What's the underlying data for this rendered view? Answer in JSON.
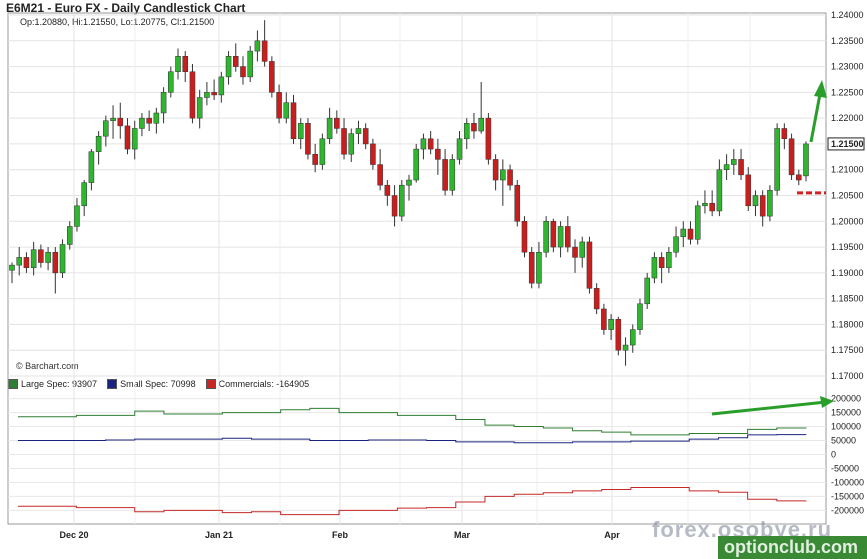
{
  "header": {
    "title": "E6M21 - Euro FX - Daily Candlestick Chart",
    "ohlc": "Op:1.20880, Hi:1.21550, Lo:1.20775, Cl:1.21500",
    "credit": "© Barchart.com"
  },
  "watermark": {
    "line1": "forex.osobye.ru",
    "line2": "optionclub.com"
  },
  "chart_data": [
    {
      "type": "candlestick",
      "title": "E6M21 - Euro FX - Daily Candlestick Chart",
      "ylim": [
        1.17,
        1.24
      ],
      "yticks": [
        "1.24000",
        "1.23500",
        "1.23000",
        "1.22500",
        "1.22000",
        "1.21500",
        "1.21000",
        "1.20500",
        "1.20000",
        "1.19500",
        "1.19000",
        "1.18500",
        "1.18000",
        "1.17500",
        "1.17000"
      ],
      "last_price": "1.21500",
      "x_labels": [
        "Dec 20",
        "Jan 21",
        "Feb",
        "Mar",
        "Apr"
      ],
      "colors": {
        "up": "#2fb52f",
        "down": "#c81e1e",
        "arrow": "#2a9e2a",
        "level": "#d42020"
      },
      "candles": [
        [
          1.1905,
          1.192,
          1.188,
          1.1915
        ],
        [
          1.1915,
          1.195,
          1.1895,
          1.193
        ],
        [
          1.193,
          1.194,
          1.19,
          1.191
        ],
        [
          1.191,
          1.196,
          1.1895,
          1.1945
        ],
        [
          1.1945,
          1.1955,
          1.191,
          1.192
        ],
        [
          1.192,
          1.195,
          1.1905,
          1.194
        ],
        [
          1.194,
          1.195,
          1.186,
          1.19
        ],
        [
          1.19,
          1.1965,
          1.189,
          1.1955
        ],
        [
          1.1955,
          1.2,
          1.1945,
          1.199
        ],
        [
          1.199,
          1.2045,
          1.198,
          1.203
        ],
        [
          1.203,
          1.208,
          1.201,
          1.2075
        ],
        [
          1.2075,
          1.214,
          1.206,
          1.2135
        ],
        [
          1.2135,
          1.2175,
          1.211,
          1.2165
        ],
        [
          1.2165,
          1.2205,
          1.2145,
          1.2195
        ],
        [
          1.2195,
          1.2225,
          1.216,
          1.22
        ],
        [
          1.22,
          1.223,
          1.216,
          1.2185
        ],
        [
          1.2185,
          1.22,
          1.213,
          1.214
        ],
        [
          1.214,
          1.2195,
          1.212,
          1.218
        ],
        [
          1.218,
          1.221,
          1.2165,
          1.22
        ],
        [
          1.22,
          1.2215,
          1.2175,
          1.219
        ],
        [
          1.219,
          1.222,
          1.217,
          1.221
        ],
        [
          1.221,
          1.226,
          1.219,
          1.225
        ],
        [
          1.225,
          1.23,
          1.224,
          1.229
        ],
        [
          1.229,
          1.2335,
          1.2275,
          1.232
        ],
        [
          1.232,
          1.233,
          1.227,
          1.229
        ],
        [
          1.229,
          1.2305,
          1.219,
          1.22
        ],
        [
          1.22,
          1.2255,
          1.218,
          1.224
        ],
        [
          1.224,
          1.227,
          1.2225,
          1.225
        ],
        [
          1.225,
          1.2275,
          1.2235,
          1.2245
        ],
        [
          1.2245,
          1.229,
          1.223,
          1.228
        ],
        [
          1.228,
          1.233,
          1.2265,
          1.232
        ],
        [
          1.232,
          1.2345,
          1.229,
          1.23
        ],
        [
          1.23,
          1.232,
          1.2265,
          1.228
        ],
        [
          1.228,
          1.234,
          1.227,
          1.233
        ],
        [
          1.233,
          1.237,
          1.231,
          1.235
        ],
        [
          1.235,
          1.239,
          1.23,
          1.231
        ],
        [
          1.231,
          1.232,
          1.224,
          1.225
        ],
        [
          1.225,
          1.2265,
          1.219,
          1.22
        ],
        [
          1.22,
          1.225,
          1.219,
          1.223
        ],
        [
          1.223,
          1.2245,
          1.215,
          1.216
        ],
        [
          1.216,
          1.22,
          1.214,
          1.219
        ],
        [
          1.219,
          1.22,
          1.212,
          1.213
        ],
        [
          1.213,
          1.215,
          1.2095,
          1.211
        ],
        [
          1.211,
          1.217,
          1.21,
          1.216
        ],
        [
          1.216,
          1.222,
          1.215,
          1.22
        ],
        [
          1.22,
          1.2215,
          1.217,
          1.218
        ],
        [
          1.218,
          1.22,
          1.212,
          1.213
        ],
        [
          1.213,
          1.218,
          1.2115,
          1.217
        ],
        [
          1.217,
          1.2195,
          1.215,
          1.218
        ],
        [
          1.218,
          1.219,
          1.214,
          1.215
        ],
        [
          1.215,
          1.216,
          1.21,
          1.211
        ],
        [
          1.211,
          1.214,
          1.206,
          1.207
        ],
        [
          1.207,
          1.208,
          1.203,
          1.205
        ],
        [
          1.205,
          1.207,
          1.199,
          1.201
        ],
        [
          1.201,
          1.208,
          1.2,
          1.207
        ],
        [
          1.207,
          1.209,
          1.204,
          1.208
        ],
        [
          1.208,
          1.215,
          1.2075,
          1.214
        ],
        [
          1.214,
          1.217,
          1.212,
          1.216
        ],
        [
          1.216,
          1.2175,
          1.213,
          1.214
        ],
        [
          1.214,
          1.216,
          1.209,
          1.212
        ],
        [
          1.212,
          1.214,
          1.205,
          1.206
        ],
        [
          1.206,
          1.213,
          1.205,
          1.212
        ],
        [
          1.212,
          1.2175,
          1.211,
          1.216
        ],
        [
          1.216,
          1.22,
          1.214,
          1.219
        ],
        [
          1.219,
          1.221,
          1.216,
          1.2175
        ],
        [
          1.2175,
          1.227,
          1.217,
          1.22
        ],
        [
          1.22,
          1.221,
          1.211,
          1.212
        ],
        [
          1.212,
          1.213,
          1.206,
          1.208
        ],
        [
          1.208,
          1.212,
          1.203,
          1.21
        ],
        [
          1.21,
          1.211,
          1.206,
          1.207
        ],
        [
          1.207,
          1.208,
          1.199,
          1.2
        ],
        [
          1.2,
          1.201,
          1.193,
          1.194
        ],
        [
          1.194,
          1.195,
          1.187,
          1.188
        ],
        [
          1.188,
          1.196,
          1.187,
          1.194
        ],
        [
          1.194,
          1.201,
          1.193,
          1.2
        ],
        [
          1.2,
          1.2005,
          1.194,
          1.195
        ],
        [
          1.195,
          1.2,
          1.193,
          1.199
        ],
        [
          1.199,
          1.201,
          1.194,
          1.195
        ],
        [
          1.195,
          1.1965,
          1.19,
          1.193
        ],
        [
          1.193,
          1.197,
          1.191,
          1.196
        ],
        [
          1.196,
          1.197,
          1.186,
          1.187
        ],
        [
          1.187,
          1.188,
          1.182,
          1.183
        ],
        [
          1.183,
          1.184,
          1.178,
          1.179
        ],
        [
          1.179,
          1.182,
          1.177,
          1.181
        ],
        [
          1.181,
          1.1815,
          1.174,
          1.175
        ],
        [
          1.175,
          1.1775,
          1.172,
          1.176
        ],
        [
          1.176,
          1.18,
          1.1745,
          1.179
        ],
        [
          1.179,
          1.185,
          1.178,
          1.184
        ],
        [
          1.184,
          1.19,
          1.183,
          1.189
        ],
        [
          1.189,
          1.194,
          1.188,
          1.193
        ],
        [
          1.193,
          1.194,
          1.188,
          1.191
        ],
        [
          1.191,
          1.195,
          1.19,
          1.194
        ],
        [
          1.194,
          1.199,
          1.193,
          1.197
        ],
        [
          1.197,
          1.2,
          1.195,
          1.1985
        ],
        [
          1.1985,
          1.2,
          1.1955,
          1.1965
        ],
        [
          1.1965,
          1.204,
          1.1955,
          1.203
        ],
        [
          1.203,
          1.206,
          1.2015,
          1.2035
        ],
        [
          1.2035,
          1.206,
          1.201,
          1.202
        ],
        [
          1.202,
          1.212,
          1.201,
          1.21
        ],
        [
          1.21,
          1.213,
          1.208,
          1.211
        ],
        [
          1.211,
          1.214,
          1.209,
          1.212
        ],
        [
          1.212,
          1.214,
          1.208,
          1.209
        ],
        [
          1.209,
          1.2105,
          1.202,
          1.203
        ],
        [
          1.203,
          1.206,
          1.201,
          1.205
        ],
        [
          1.205,
          1.206,
          1.199,
          1.201
        ],
        [
          1.201,
          1.207,
          1.2,
          1.206
        ],
        [
          1.206,
          1.219,
          1.205,
          1.218
        ],
        [
          1.218,
          1.219,
          1.214,
          1.216
        ],
        [
          1.216,
          1.217,
          1.208,
          1.209
        ],
        [
          1.209,
          1.21,
          1.207,
          1.208
        ],
        [
          1.2088,
          1.2155,
          1.20775,
          1.215
        ]
      ],
      "annotations": {
        "resistance_level": 1.2055
      }
    },
    {
      "type": "line",
      "legend": [
        "Large Spec: 93907",
        "Small Spec: 70998",
        "Commercials: -164905"
      ],
      "ylim": [
        -220000,
        220000
      ],
      "yticks": [
        "200000",
        "150000",
        "100000",
        "50000",
        "0",
        "-50000",
        "-100000",
        "-150000",
        "-200000"
      ],
      "series": [
        {
          "name": "Large Spec",
          "color": "#2e7d32",
          "values": [
            135000,
            135000,
            140000,
            140000,
            155000,
            145000,
            145000,
            150000,
            150000,
            160000,
            165000,
            150000,
            150000,
            140000,
            140000,
            125000,
            105000,
            100000,
            95000,
            85000,
            80000,
            70000,
            70000,
            75000,
            75000,
            90000,
            95000,
            93907
          ]
        },
        {
          "name": "Small Spec",
          "color": "#1a237e",
          "values": [
            50000,
            50000,
            50000,
            52000,
            55000,
            55000,
            55000,
            58000,
            55000,
            55000,
            50000,
            50000,
            52000,
            52000,
            50000,
            45000,
            45000,
            42000,
            42000,
            45000,
            45000,
            48000,
            48000,
            55000,
            60000,
            70000,
            71000,
            70998
          ]
        },
        {
          "name": "Commercials",
          "color": "#c62828",
          "values": [
            -185000,
            -185000,
            -190000,
            -190000,
            -205000,
            -200000,
            -200000,
            -208000,
            -205000,
            -215000,
            -215000,
            -200000,
            -200000,
            -192000,
            -190000,
            -170000,
            -150000,
            -142000,
            -137000,
            -130000,
            -125000,
            -118000,
            -118000,
            -130000,
            -135000,
            -160000,
            -166000,
            -164905
          ]
        }
      ]
    }
  ]
}
